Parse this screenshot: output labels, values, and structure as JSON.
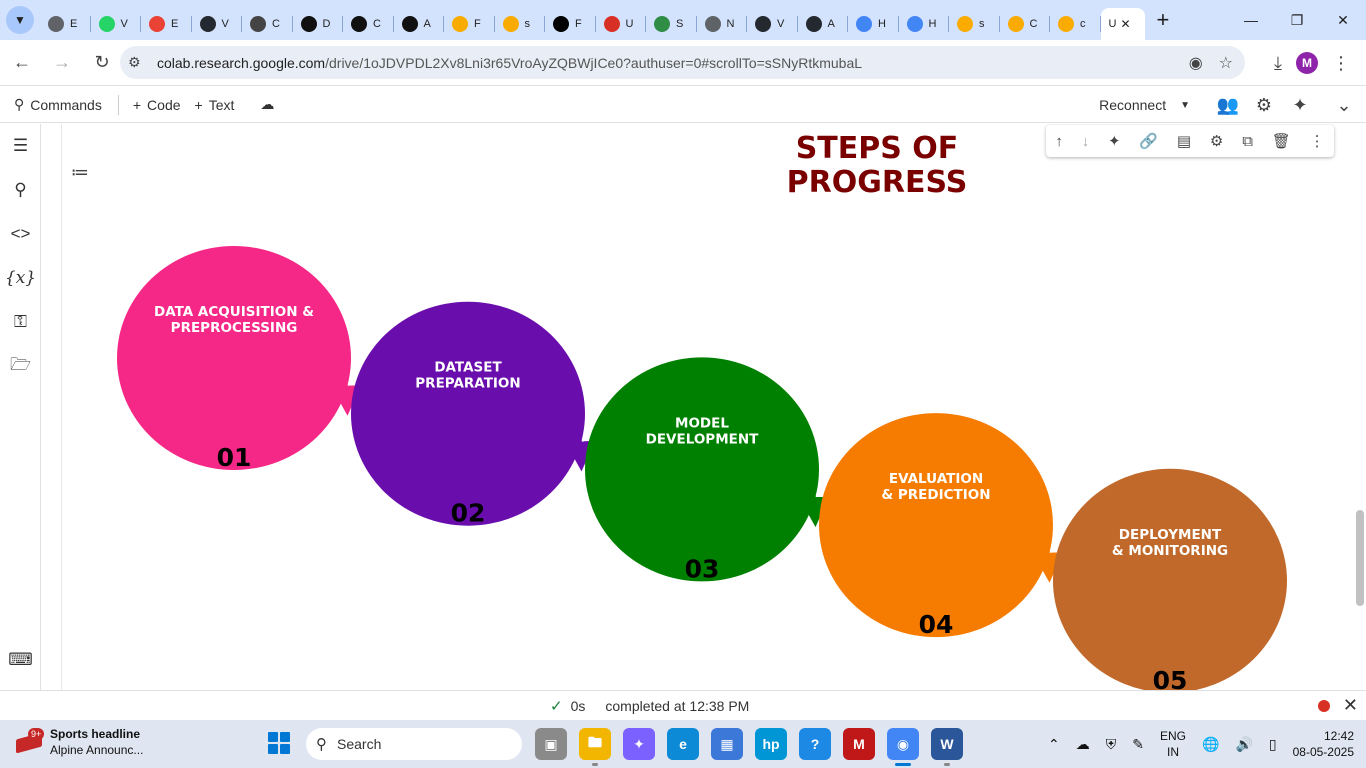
{
  "browser": {
    "tabs": [
      {
        "letter": "E",
        "color": "#5f6368"
      },
      {
        "letter": "V",
        "color": "#25d366"
      },
      {
        "letter": "E",
        "color": "#ea4335"
      },
      {
        "letter": "V",
        "color": "#24292f"
      },
      {
        "letter": "C",
        "color": "#444444"
      },
      {
        "letter": "D",
        "color": "#111111"
      },
      {
        "letter": "C",
        "color": "#111111"
      },
      {
        "letter": "A",
        "color": "#111111"
      },
      {
        "letter": "F",
        "color": "#f9ab00"
      },
      {
        "letter": "s",
        "color": "#f9ab00"
      },
      {
        "letter": "F",
        "color": "#000000"
      },
      {
        "letter": "U",
        "color": "#d93025"
      },
      {
        "letter": "S",
        "color": "#2f8d46"
      },
      {
        "letter": "N",
        "color": "#5f6368"
      },
      {
        "letter": "V",
        "color": "#24292f"
      },
      {
        "letter": "A",
        "color": "#24292f"
      },
      {
        "letter": "H",
        "color": "#4285f4"
      },
      {
        "letter": "H",
        "color": "#4285f4"
      },
      {
        "letter": "s",
        "color": "#f9ab00"
      },
      {
        "letter": "C",
        "color": "#f9ab00"
      },
      {
        "letter": "c",
        "color": "#f9ab00"
      }
    ],
    "active_tab": {
      "letter": "U"
    },
    "url_host": "colab.research.google.com",
    "url_path": "/drive/1oJDVPDL2Xv8Lni3r65VroAyZQBWjICe0?authuser=0#scrollTo=sSNyRtkmubaL",
    "avatar_letter": "M"
  },
  "toolbar": {
    "commands": "Commands",
    "code": "Code",
    "text": "Text",
    "reconnect": "Reconnect"
  },
  "diagram": {
    "title_line1": "STEPS OF",
    "title_line2": "PROGRESS",
    "steps": [
      {
        "line1": "DATA ACQUISITION &",
        "line2": "PREPROCESSING",
        "num": "01",
        "color": "#f52887"
      },
      {
        "line1": "DATASET",
        "line2": "PREPARATION",
        "num": "02",
        "color": "#6a0dad"
      },
      {
        "line1": "MODEL",
        "line2": "DEVELOPMENT",
        "num": "03",
        "color": "#008000"
      },
      {
        "line1": "EVALUATION",
        "line2": "& PREDICTION",
        "num": "04",
        "color": "#f57c00"
      },
      {
        "line1": "DEPLOYMENT",
        "line2": "& MONITORING",
        "num": "05",
        "color": "#c0692a"
      }
    ]
  },
  "status": {
    "duration": "0s",
    "text": "completed at 12:38 PM"
  },
  "taskbar": {
    "news_badge": "9+",
    "news_title": "Sports headline",
    "news_sub": "Alpine Announc...",
    "search": "Search",
    "lang1": "ENG",
    "lang2": "IN",
    "time": "12:42",
    "date": "08-05-2025"
  }
}
